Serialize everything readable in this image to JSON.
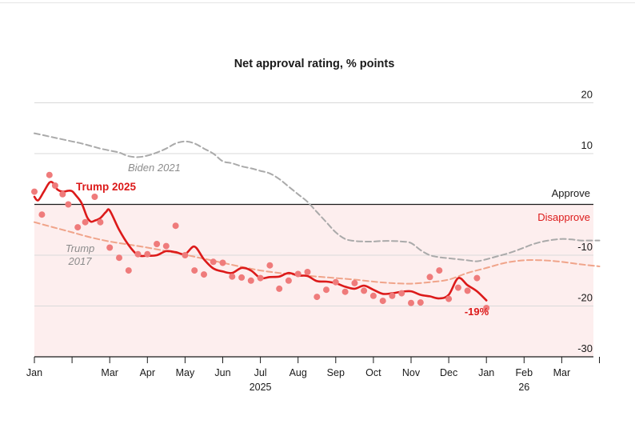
{
  "chart_data": {
    "type": "line",
    "title": "Net approval rating, % points",
    "ylim": [
      -30,
      20
    ],
    "xlim": [
      0,
      15.5
    ],
    "y_ticks": [
      {
        "value": 20,
        "label": "20"
      },
      {
        "value": 10,
        "label": "10"
      },
      {
        "value": -10,
        "label": "-10"
      },
      {
        "value": -20,
        "label": "-20"
      },
      {
        "value": -30,
        "label": "-30"
      }
    ],
    "x_ticks": [
      {
        "pos": 0,
        "label": "Jan",
        "sub": ""
      },
      {
        "pos": 1,
        "label": "",
        "sub": ""
      },
      {
        "pos": 2,
        "label": "Mar",
        "sub": ""
      },
      {
        "pos": 3,
        "label": "Apr",
        "sub": ""
      },
      {
        "pos": 4,
        "label": "May",
        "sub": ""
      },
      {
        "pos": 5,
        "label": "Jun",
        "sub": ""
      },
      {
        "pos": 6,
        "label": "Jul",
        "sub": "2025"
      },
      {
        "pos": 7,
        "label": "Aug",
        "sub": ""
      },
      {
        "pos": 8,
        "label": "Sep",
        "sub": ""
      },
      {
        "pos": 9,
        "label": "Oct",
        "sub": ""
      },
      {
        "pos": 10,
        "label": "Nov",
        "sub": ""
      },
      {
        "pos": 11,
        "label": "Dec",
        "sub": ""
      },
      {
        "pos": 12,
        "label": "Jan",
        "sub": ""
      },
      {
        "pos": 13,
        "label": "Feb",
        "sub": "26"
      },
      {
        "pos": 14,
        "label": "Mar",
        "sub": ""
      },
      {
        "pos": 15,
        "label": "",
        "sub": ""
      }
    ],
    "zones": {
      "approve": "Approve",
      "disapprove": "Disapprove"
    },
    "series": [
      {
        "name": "Biden 2021",
        "style": "dashed",
        "color": "#aaaaaa",
        "x": [
          0,
          0.5,
          1,
          1.25,
          1.5,
          1.75,
          2,
          2.25,
          2.5,
          2.75,
          3,
          3.25,
          3.5,
          3.75,
          4,
          4.25,
          4.5,
          4.75,
          5,
          5.25,
          5.5,
          5.75,
          6,
          6.25,
          6.5,
          6.75,
          7,
          7.25,
          7.5,
          7.75,
          8,
          8.25,
          8.5,
          8.75,
          9,
          9.25,
          9.5,
          9.75,
          10,
          10.25,
          10.5,
          10.75,
          11,
          11.25,
          11.5,
          11.75,
          12,
          12.25,
          12.5,
          12.75,
          13,
          13.25,
          13.5,
          13.75,
          14,
          14.25,
          14.5,
          14.75,
          15
        ],
        "values": [
          14,
          13.2,
          12.4,
          12,
          11.5,
          11,
          10.6,
          10.2,
          9.5,
          9.3,
          9.6,
          10.2,
          11,
          12,
          12.4,
          12,
          11,
          10,
          8.5,
          8.1,
          7.5,
          7.1,
          6.6,
          6.1,
          5,
          3.5,
          2,
          0.5,
          -1.5,
          -3.5,
          -5.5,
          -6.8,
          -7.2,
          -7.3,
          -7.3,
          -7.2,
          -7.2,
          -7.3,
          -7.6,
          -9,
          -10,
          -10.4,
          -10.6,
          -10.8,
          -11,
          -11.2,
          -10.8,
          -10.3,
          -9.8,
          -9.2,
          -8.5,
          -7.8,
          -7.3,
          -7,
          -6.8,
          -6.9,
          -7.1,
          -7.1,
          -7.1
        ]
      },
      {
        "name": "Trump 2017",
        "style": "dashed",
        "color": "#f0a48a",
        "x": [
          0,
          0.5,
          1,
          1.5,
          2,
          2.5,
          3,
          3.5,
          4,
          4.5,
          5,
          5.5,
          6,
          6.5,
          7,
          7.5,
          8,
          8.5,
          9,
          9.5,
          10,
          10.5,
          11,
          11.5,
          12,
          12.5,
          13,
          13.5,
          14,
          14.5,
          15
        ],
        "values": [
          -3.5,
          -4.5,
          -5.5,
          -6.5,
          -7.3,
          -7.9,
          -8.5,
          -9.2,
          -9.9,
          -10.7,
          -11.5,
          -12.3,
          -13,
          -13.5,
          -13.9,
          -14.2,
          -14.5,
          -14.8,
          -15.2,
          -15.5,
          -15.6,
          -15.3,
          -14.8,
          -13.5,
          -12.5,
          -11.5,
          -11,
          -11,
          -11.3,
          -11.8,
          -12.2
        ]
      },
      {
        "name": "Trump 2025",
        "style": "solid",
        "color": "#dc1a1a",
        "x": [
          0,
          0.1,
          0.25,
          0.4,
          0.5,
          0.6,
          0.75,
          0.9,
          1,
          1.1,
          1.25,
          1.4,
          1.5,
          1.6,
          1.75,
          1.9,
          2,
          2.25,
          2.5,
          2.75,
          3,
          3.25,
          3.5,
          3.75,
          4,
          4.25,
          4.5,
          4.75,
          5,
          5.25,
          5.5,
          5.75,
          6,
          6.25,
          6.5,
          6.75,
          7,
          7.25,
          7.5,
          7.75,
          8,
          8.25,
          8.5,
          8.75,
          9,
          9.25,
          9.5,
          9.75,
          10,
          10.25,
          10.5,
          10.75,
          11,
          11.25,
          11.5,
          11.75,
          12
        ],
        "values": [
          1.5,
          0.8,
          2.5,
          4.3,
          4.2,
          3,
          2.5,
          2.7,
          2.6,
          1.8,
          0.3,
          -2.5,
          -3.4,
          -3.2,
          -2.7,
          -1.5,
          -1.2,
          -5,
          -8,
          -10,
          -10.1,
          -10,
          -9.2,
          -9.4,
          -9.8,
          -8.3,
          -10.8,
          -12.6,
          -13.2,
          -13.5,
          -12.5,
          -13,
          -14.5,
          -14.3,
          -14.2,
          -13.5,
          -14,
          -14.1,
          -15.1,
          -15.2,
          -15.5,
          -16.2,
          -16.6,
          -16,
          -16.8,
          -17.6,
          -17.5,
          -17.2,
          -17.1,
          -17.8,
          -18.1,
          -18.5,
          -17.8,
          -14.5,
          -15.9,
          -17.1,
          -18.9
        ]
      }
    ],
    "trump2025_points": {
      "x": [
        0,
        0.2,
        0.4,
        0.55,
        0.75,
        0.9,
        1.15,
        1.35,
        1.6,
        1.75,
        2,
        2.25,
        2.5,
        2.75,
        3,
        3.25,
        3.5,
        3.75,
        4,
        4.25,
        4.5,
        4.75,
        5,
        5.25,
        5.5,
        5.75,
        6,
        6.25,
        6.5,
        6.75,
        7,
        7.25,
        7.5,
        7.75,
        8,
        8.25,
        8.5,
        8.75,
        9,
        9.25,
        9.5,
        9.75,
        10,
        10.25,
        10.5,
        10.75,
        11,
        11.25,
        11.5,
        11.75,
        12
      ],
      "values": [
        2.5,
        -2,
        5.8,
        3.7,
        2,
        0,
        -4.5,
        -3.5,
        1.5,
        -3.5,
        -8.5,
        -10.5,
        -13,
        -9.8,
        -9.8,
        -7.8,
        -8.2,
        -4.2,
        -10,
        -13,
        -13.8,
        -11.3,
        -11.5,
        -14.2,
        -14.4,
        -15,
        -14.5,
        -12,
        -16.6,
        -15,
        -13.7,
        -13.3,
        -18.2,
        -16.8,
        -15.3,
        -17.2,
        -15.5,
        -17,
        -18,
        -19,
        -18,
        -17.5,
        -19.4,
        -19.3,
        -14.3,
        -13,
        -18.6,
        -16.4,
        -17,
        -14.5,
        -20.4
      ]
    },
    "labels": {
      "biden": "Biden 2021",
      "trump2017_line1": "Trump",
      "trump2017_line2": "2017",
      "trump2025": "Trump 2025",
      "current_value": "-19%"
    },
    "colors": {
      "trump2025": "#dc1a1a",
      "trump2025_points": "#ef7b7b",
      "biden": "#aaaaaa",
      "trump2017": "#f0a48a",
      "disapprove_bg": "#fdeeee",
      "gridline": "#d9d9d9"
    }
  }
}
